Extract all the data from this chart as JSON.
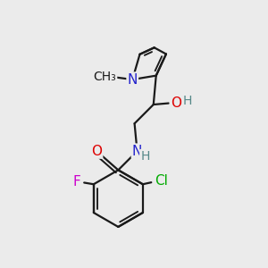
{
  "bg_color": "#ebebeb",
  "bond_color": "#1a1a1a",
  "bond_width": 1.6,
  "colors": {
    "F": "#cc00cc",
    "Cl": "#00aa00",
    "O": "#dd0000",
    "N": "#2222cc",
    "OH_label": "#558888",
    "H": "#558888"
  },
  "fontsize": 11,
  "small_fontsize": 10
}
